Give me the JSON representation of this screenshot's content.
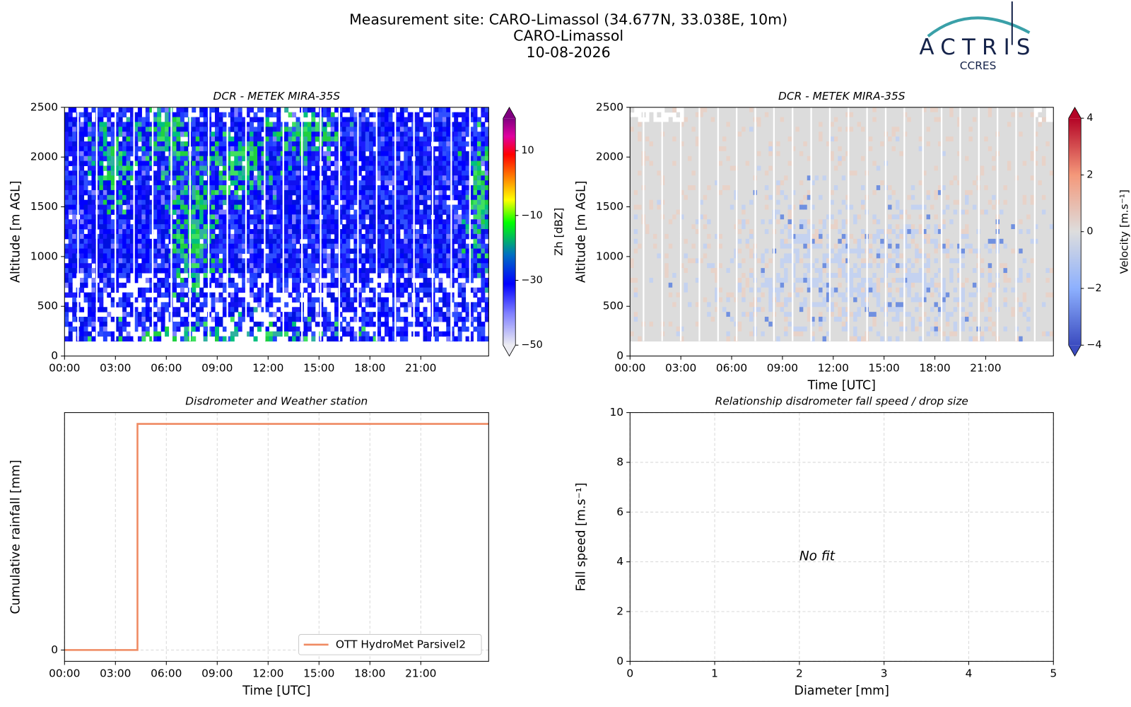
{
  "header": {
    "title_lines": [
      "Measurement site: CARO-Limassol (34.677N, 33.038E, 10m)",
      "CARO-Limassol",
      "10-08-2026"
    ],
    "logo": "ACTRIS",
    "logo_sub": "CCRES"
  },
  "chart_data": [
    {
      "type": "heatmap",
      "title": "DCR - METEK MIRA-35S",
      "ylabel": "Altitude [m AGL]",
      "field": "reflectivity",
      "xlim": [
        0,
        25
      ],
      "xticks": [
        {
          "value": 0,
          "label": "00:00"
        },
        {
          "value": 3,
          "label": "03:00"
        },
        {
          "value": 6,
          "label": "06:00"
        },
        {
          "value": 9,
          "label": "09:00"
        },
        {
          "value": 12,
          "label": "12:00"
        },
        {
          "value": 15,
          "label": "15:00"
        },
        {
          "value": 18,
          "label": "18:00"
        },
        {
          "value": 21,
          "label": "21:00"
        }
      ],
      "ylim": [
        0,
        2500
      ],
      "yticks": [
        0,
        500,
        1000,
        1500,
        2000,
        2500
      ],
      "colorbar": {
        "label": "Zh [dBZ]",
        "lim": [
          -50,
          20
        ],
        "ticks": [
          {
            "value": -50,
            "label": "−50"
          },
          {
            "value": -30,
            "label": "−30"
          },
          {
            "value": -10,
            "label": "−10"
          },
          10
        ]
      }
    },
    {
      "type": "heatmap",
      "title": "DCR - METEK MIRA-35S",
      "ylabel": "Altitude [m AGL]",
      "xlabel": "Time [UTC]",
      "field": "velocity",
      "xlim": [
        0,
        25
      ],
      "xticks": [
        {
          "value": 0,
          "label": "00:00"
        },
        {
          "value": 3,
          "label": "03:00"
        },
        {
          "value": 6,
          "label": "06:00"
        },
        {
          "value": 9,
          "label": "09:00"
        },
        {
          "value": 12,
          "label": "12:00"
        },
        {
          "value": 15,
          "label": "15:00"
        },
        {
          "value": 18,
          "label": "18:00"
        },
        {
          "value": 21,
          "label": "21:00"
        }
      ],
      "ylim": [
        0,
        2500
      ],
      "yticks": [
        0,
        500,
        1000,
        1500,
        2000,
        2500
      ],
      "colorbar": {
        "label": "Velocity [m.s⁻¹]",
        "lim": [
          -4,
          4
        ],
        "ticks": [
          {
            "value": -4,
            "label": "−4"
          },
          {
            "value": -2,
            "label": "−2"
          },
          0,
          2,
          4
        ]
      }
    },
    {
      "type": "line",
      "title": "Disdrometer and Weather station",
      "ylabel": "Cumulative rainfall [mm]",
      "xlabel": "Time [UTC]",
      "x": [
        0,
        4.3,
        4.3,
        25
      ],
      "series": [
        {
          "name": "OTT HydroMet Parsivel2",
          "color": "#ef8a62",
          "values": [
            0,
            0,
            1.0,
            1.0
          ]
        }
      ],
      "xlim": [
        0,
        25
      ],
      "xticks": [
        {
          "value": 0,
          "label": "00:00"
        },
        {
          "value": 3,
          "label": "03:00"
        },
        {
          "value": 6,
          "label": "06:00"
        },
        {
          "value": 9,
          "label": "09:00"
        },
        {
          "value": 12,
          "label": "12:00"
        },
        {
          "value": 15,
          "label": "15:00"
        },
        {
          "value": 18,
          "label": "18:00"
        },
        {
          "value": 21,
          "label": "21:00"
        }
      ],
      "ylim": [
        -0.05,
        1.05
      ],
      "yticks": [
        0
      ],
      "grid": true,
      "legend": "lower right"
    },
    {
      "type": "scatter",
      "title": "Relationship disdrometer fall speed / drop size",
      "ylabel": "Fall speed [m.s⁻¹]",
      "xlabel": "Diameter [mm]",
      "annotation": "No fit",
      "xlim": [
        0,
        5
      ],
      "xticks": [
        0,
        1,
        2,
        3,
        4,
        5
      ],
      "ylim": [
        0,
        10
      ],
      "yticks": [
        0,
        2,
        4,
        6,
        8,
        10
      ],
      "grid": true
    }
  ]
}
